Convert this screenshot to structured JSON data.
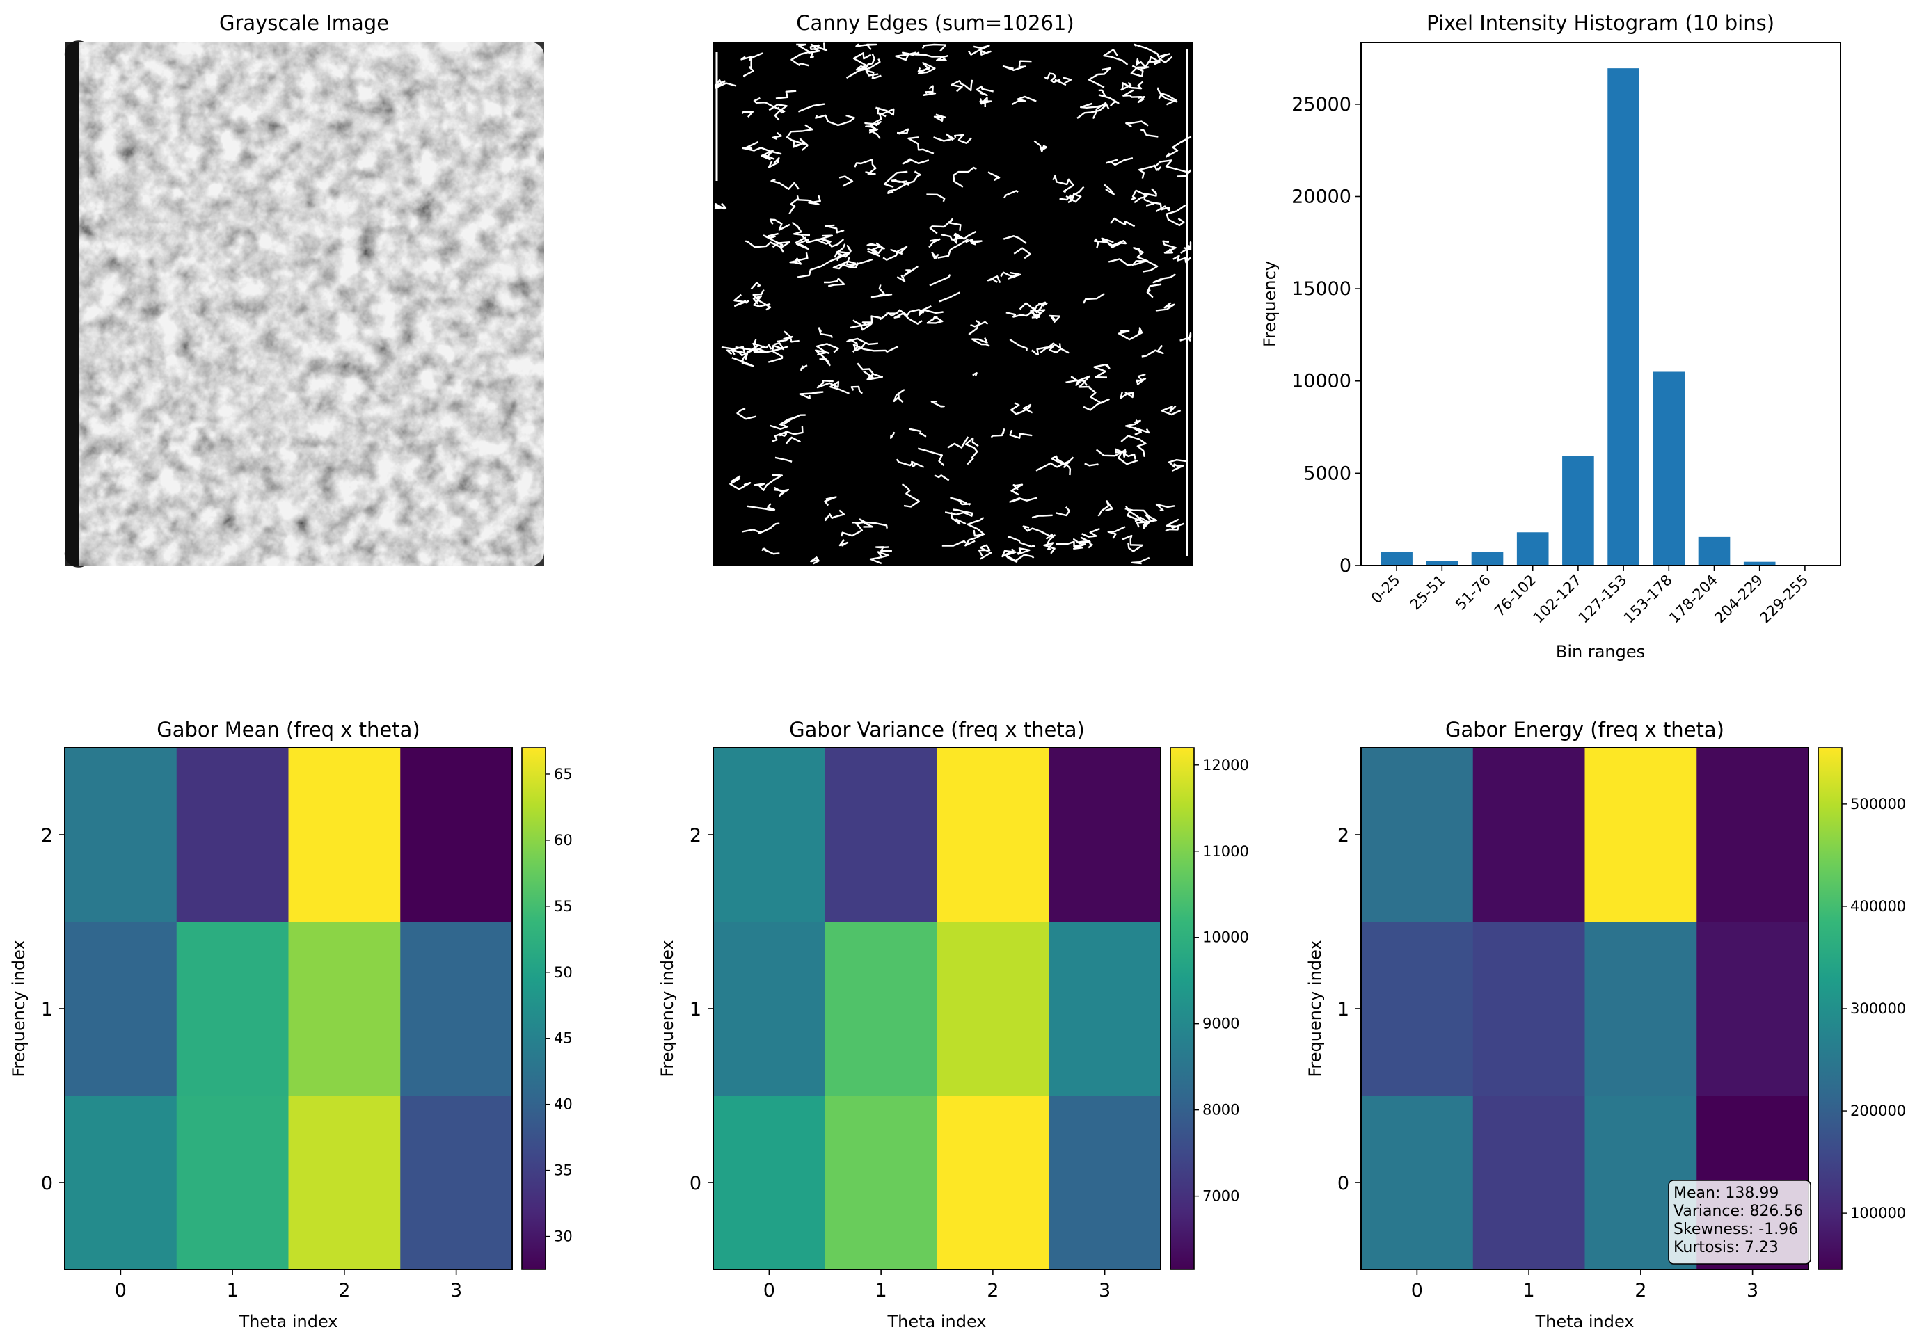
{
  "colormap": {
    "name": "viridis",
    "stops": [
      "#440154",
      "#482878",
      "#3e4989",
      "#31688e",
      "#26828e",
      "#1f9e89",
      "#35b779",
      "#6ece58",
      "#b5de2b",
      "#fde725"
    ]
  },
  "chart_data": [
    {
      "type": "image",
      "title": "Grayscale Image",
      "description": "grayscale photograph of rocky soil texture"
    },
    {
      "type": "image",
      "title": "Canny Edges (sum=10261)",
      "description": "binary edge map, white edges on black"
    },
    {
      "type": "bar",
      "title": "Pixel Intensity Histogram (10 bins)",
      "xlabel": "Bin ranges",
      "ylabel": "Frequency",
      "categories": [
        "0-25",
        "25-51",
        "51-76",
        "76-102",
        "102-127",
        "127-153",
        "153-178",
        "178-204",
        "204-229",
        "229-255"
      ],
      "values": [
        750,
        250,
        750,
        1800,
        5950,
        26950,
        10500,
        1550,
        200,
        0
      ],
      "ylim": [
        0,
        28350
      ],
      "yticks": [
        0,
        5000,
        10000,
        15000,
        20000,
        25000
      ],
      "color": "#1f77b4"
    },
    {
      "type": "heatmap",
      "title": "Gabor Mean (freq x theta)",
      "xlabel": "Theta index",
      "ylabel": "Frequency index",
      "x": [
        0,
        1,
        2,
        3
      ],
      "y": [
        0,
        1,
        2
      ],
      "values": [
        [
          46.5,
          52.5,
          63.5,
          37.5
        ],
        [
          40.5,
          52.0,
          60.0,
          40.5
        ],
        [
          43.5,
          33.5,
          67.0,
          27.5
        ]
      ],
      "vmin": 27.5,
      "vmax": 67.0,
      "colorbar_ticks": [
        30,
        35,
        40,
        45,
        50,
        55,
        60,
        65
      ]
    },
    {
      "type": "heatmap",
      "title": "Gabor Variance (freq x theta)",
      "xlabel": "Theta index",
      "ylabel": "Frequency index",
      "x": [
        0,
        1,
        2,
        3
      ],
      "y": [
        0,
        1,
        2
      ],
      "values": [
        [
          9600,
          10800,
          12200,
          8150
        ],
        [
          8700,
          10500,
          11600,
          8900
        ],
        [
          8900,
          7250,
          12200,
          6250
        ]
      ],
      "vmin": 6150,
      "vmax": 12200,
      "colorbar_ticks": [
        7000,
        8000,
        9000,
        10000,
        11000,
        12000
      ]
    },
    {
      "type": "heatmap",
      "title": "Gabor Energy (freq x theta)",
      "xlabel": "Theta index",
      "ylabel": "Frequency index",
      "x": [
        0,
        1,
        2,
        3
      ],
      "y": [
        0,
        1,
        2
      ],
      "values": [
        [
          250000,
          140000,
          250000,
          45000
        ],
        [
          170000,
          150000,
          240000,
          70000
        ],
        [
          235000,
          60000,
          555000,
          55000
        ]
      ],
      "vmin": 45000,
      "vmax": 555000,
      "colorbar_ticks": [
        100000,
        200000,
        300000,
        400000,
        500000
      ],
      "annotation": [
        "Mean: 138.99",
        "Variance: 826.56",
        "Skewness: -1.96",
        "Kurtosis: 7.23"
      ]
    }
  ]
}
